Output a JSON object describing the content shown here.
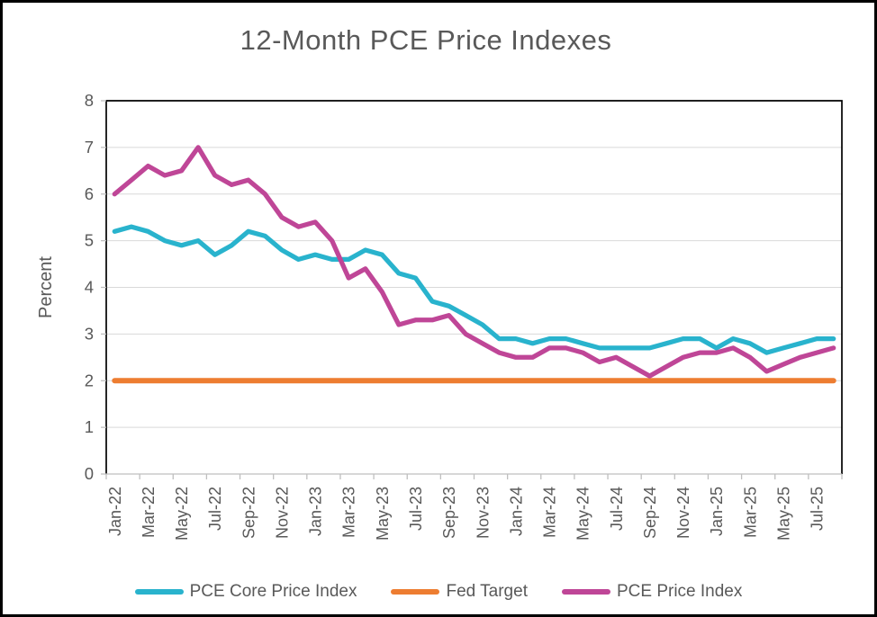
{
  "window": {
    "background": "#ffffff",
    "frame_border_color": "#000000"
  },
  "styles": {
    "text_color": "#595959",
    "gridline_color": "#d9d9d9",
    "axis_line_color": "#bfbfbf",
    "plot_border_color": "#000000"
  },
  "chart_data": {
    "type": "line",
    "title": "12-Month PCE Price Indexes",
    "ylabel": "Percent",
    "xlabel": "",
    "ylim": [
      0,
      8
    ],
    "y_ticks": [
      0,
      1,
      2,
      3,
      4,
      5,
      6,
      7,
      8
    ],
    "grid": "horizontal-only",
    "legend_position": "bottom",
    "x_label_every": 2,
    "x_label_rotation": -90,
    "x_categories": [
      "Jan-22",
      "Feb-22",
      "Mar-22",
      "Apr-22",
      "May-22",
      "Jun-22",
      "Jul-22",
      "Aug-22",
      "Sep-22",
      "Oct-22",
      "Nov-22",
      "Dec-22",
      "Jan-23",
      "Feb-23",
      "Mar-23",
      "Apr-23",
      "May-23",
      "Jun-23",
      "Jul-23",
      "Aug-23",
      "Sep-23",
      "Oct-23",
      "Nov-23",
      "Dec-23",
      "Jan-24",
      "Feb-24",
      "Mar-24",
      "Apr-24",
      "May-24",
      "Jun-24",
      "Jul-24",
      "Aug-24",
      "Sep-24",
      "Oct-24",
      "Nov-24",
      "Dec-24",
      "Jan-25",
      "Feb-25",
      "Mar-25",
      "Apr-25",
      "May-25",
      "Jun-25",
      "Jul-25",
      "Aug-25"
    ],
    "x_tick_labels": [
      "Jan-22",
      "Mar-22",
      "May-22",
      "Jul-22",
      "Sep-22",
      "Nov-22",
      "Jan-23",
      "Mar-23",
      "May-23",
      "Jul-23",
      "Sep-23",
      "Nov-23",
      "Jan-24",
      "Mar-24",
      "May-24",
      "Jul-24",
      "Sep-24",
      "Nov-24",
      "Jan-25",
      "Mar-25",
      "May-25",
      "Jul-25"
    ],
    "series": [
      {
        "name": "PCE Core Price Index",
        "color": "#29b3cd",
        "values": [
          5.2,
          5.3,
          5.2,
          5.0,
          4.9,
          5.0,
          4.7,
          4.9,
          5.2,
          5.1,
          4.8,
          4.6,
          4.7,
          4.6,
          4.6,
          4.8,
          4.7,
          4.3,
          4.2,
          3.7,
          3.6,
          3.4,
          3.2,
          2.9,
          2.9,
          2.8,
          2.9,
          2.9,
          2.8,
          2.7,
          2.7,
          2.7,
          2.7,
          2.8,
          2.9,
          2.9,
          2.7,
          2.9,
          2.8,
          2.6,
          2.7,
          2.8,
          2.9,
          2.9
        ]
      },
      {
        "name": "Fed Target",
        "color": "#ed7d31",
        "values": [
          2,
          2,
          2,
          2,
          2,
          2,
          2,
          2,
          2,
          2,
          2,
          2,
          2,
          2,
          2,
          2,
          2,
          2,
          2,
          2,
          2,
          2,
          2,
          2,
          2,
          2,
          2,
          2,
          2,
          2,
          2,
          2,
          2,
          2,
          2,
          2,
          2,
          2,
          2,
          2,
          2,
          2,
          2,
          2
        ]
      },
      {
        "name": "PCE Price Index",
        "color": "#bf4697",
        "values": [
          6.0,
          6.3,
          6.6,
          6.4,
          6.5,
          7.0,
          6.4,
          6.2,
          6.3,
          6.0,
          5.5,
          5.3,
          5.4,
          5.0,
          4.2,
          4.4,
          3.9,
          3.2,
          3.3,
          3.3,
          3.4,
          3.0,
          2.8,
          2.6,
          2.5,
          2.5,
          2.7,
          2.7,
          2.6,
          2.4,
          2.5,
          2.3,
          2.1,
          2.3,
          2.5,
          2.6,
          2.6,
          2.7,
          2.5,
          2.2,
          2.35,
          2.5,
          2.6,
          2.7
        ]
      }
    ]
  }
}
